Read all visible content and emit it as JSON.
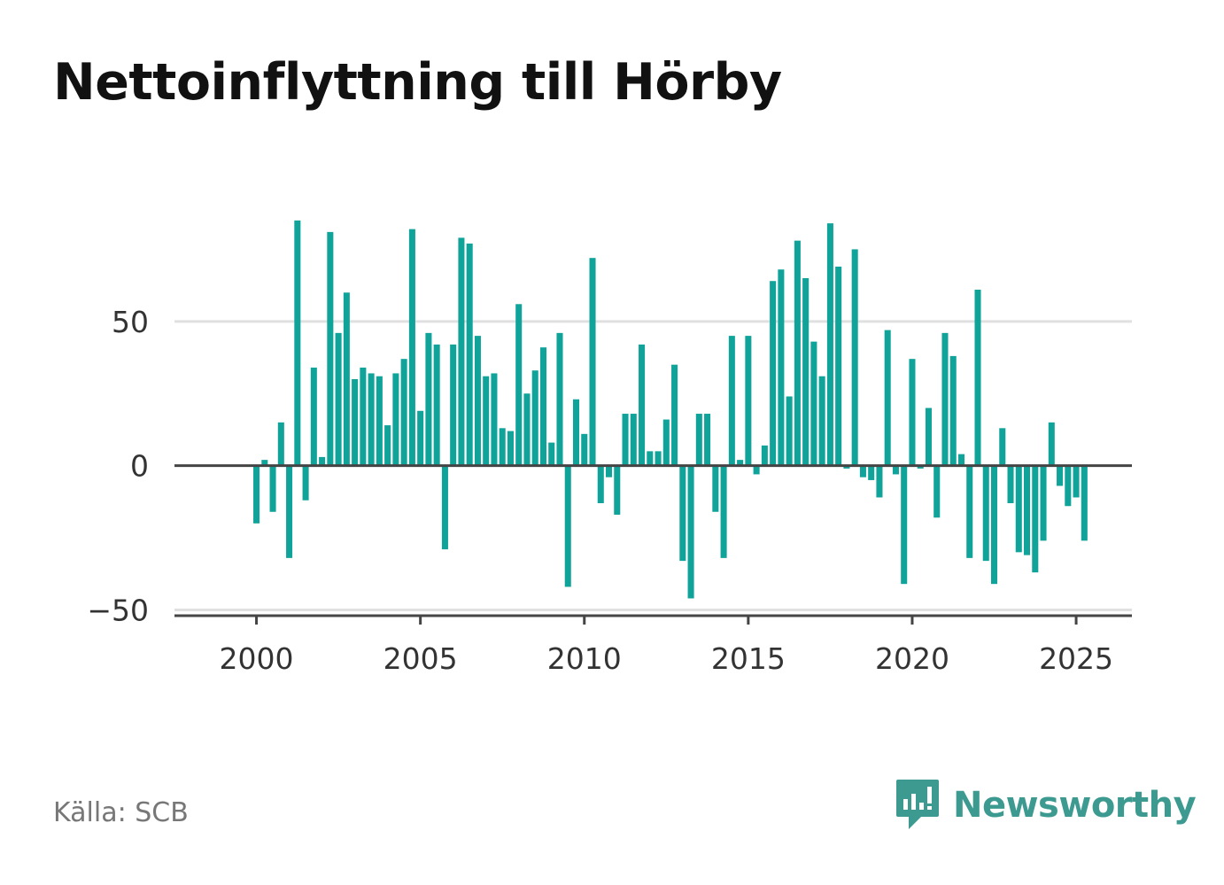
{
  "chart_data": {
    "type": "bar",
    "title": "Nettoinflyttning till Hörby",
    "xlabel": "",
    "ylabel": "",
    "x_start": 2000.0,
    "x_step": 0.25,
    "values": [
      -20,
      2,
      -16,
      15,
      -32,
      85,
      -12,
      34,
      3,
      81,
      46,
      60,
      30,
      34,
      32,
      31,
      14,
      32,
      37,
      82,
      19,
      46,
      42,
      -29,
      42,
      79,
      77,
      45,
      31,
      32,
      13,
      12,
      56,
      25,
      33,
      41,
      8,
      46,
      -42,
      23,
      11,
      72,
      -13,
      -4,
      -17,
      18,
      18,
      42,
      5,
      5,
      16,
      35,
      -33,
      -46,
      18,
      18,
      -16,
      -32,
      45,
      2,
      45,
      -3,
      7,
      64,
      68,
      24,
      78,
      65,
      43,
      31,
      84,
      69,
      -1,
      75,
      -4,
      -5,
      -11,
      47,
      -3,
      -41,
      37,
      -1,
      20,
      -18,
      46,
      38,
      4,
      -32,
      61,
      -33,
      -41,
      13,
      -13,
      -30,
      -31,
      -37,
      -26,
      15,
      -7,
      -14,
      -11,
      -26
    ],
    "xlim": [
      1997.5,
      2026.7
    ],
    "ylim": [
      -52,
      100
    ],
    "xticks": [
      2000,
      2005,
      2010,
      2015,
      2020,
      2025
    ],
    "yticks": [
      -50,
      0,
      50
    ],
    "ytick_labels": [
      "−50",
      "0",
      "50"
    ],
    "grid": true,
    "bar_color": "#0fa39a",
    "legend": "none"
  },
  "footer": {
    "source": "Källa: SCB",
    "brand": "Newsworthy",
    "brand_color": "#3d9a90",
    "logo_icon": "bar-chart-speech-bubble-icon"
  }
}
